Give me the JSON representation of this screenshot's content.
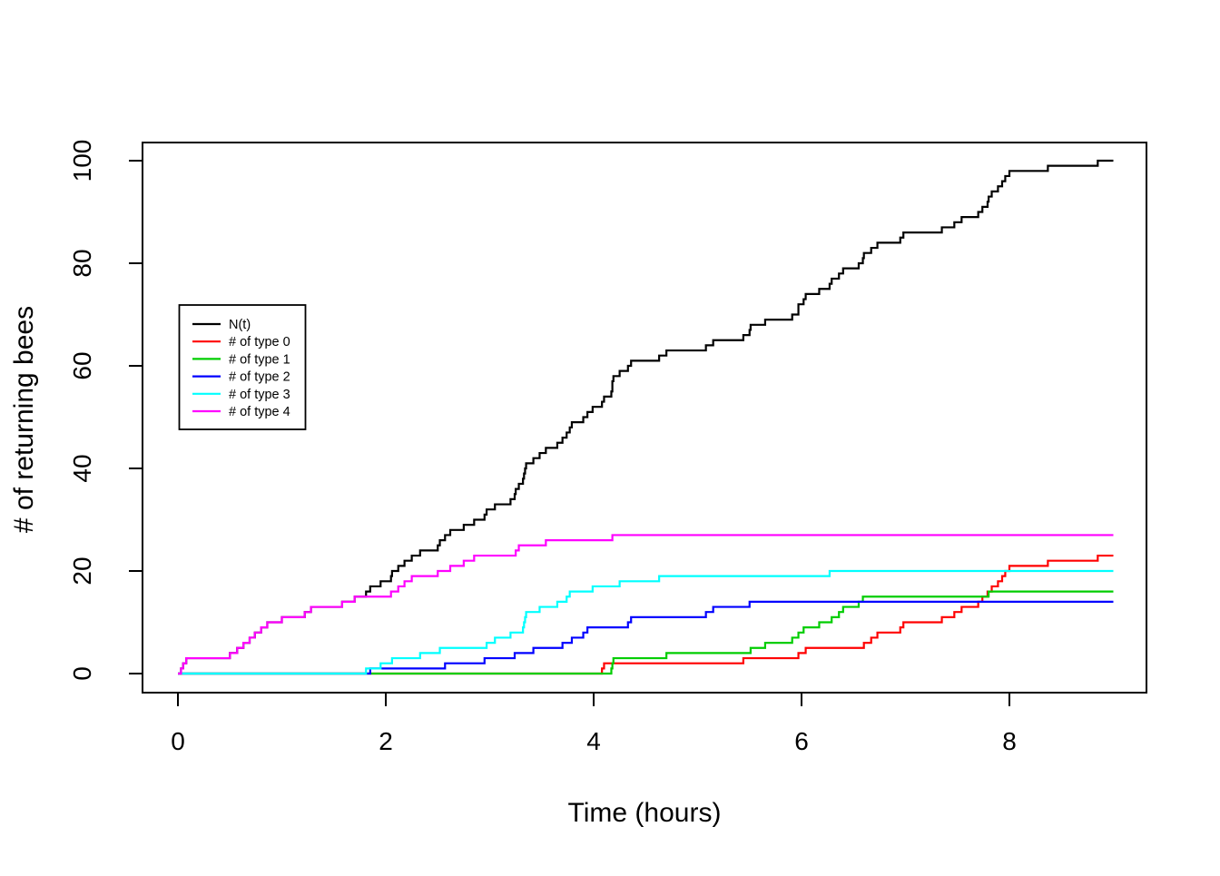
{
  "chart_data": {
    "type": "line",
    "subtype": "step",
    "title": "",
    "xlabel": "Time (hours)",
    "ylabel": "# of returning bees",
    "xlim": [
      -0.36,
      9.41
    ],
    "ylim": [
      -4,
      104
    ],
    "x_ticks": [
      0,
      2,
      4,
      6,
      8
    ],
    "y_ticks": [
      0,
      20,
      40,
      60,
      80,
      100
    ],
    "grid": false,
    "legend_position": "left-middle",
    "t_start": 0,
    "t_end": 9.0,
    "start_value": 0,
    "series": [
      {
        "name": "N(t)",
        "color": "#000000",
        "end_value": 100,
        "jump_times": [
          0.03,
          0.05,
          0.08,
          0.5,
          0.57,
          0.63,
          0.69,
          0.74,
          0.8,
          0.86,
          1.0,
          1.22,
          1.28,
          1.58,
          1.7,
          1.81,
          1.85,
          1.95,
          2.05,
          2.06,
          2.12,
          2.18,
          2.25,
          2.33,
          2.5,
          2.52,
          2.57,
          2.62,
          2.75,
          2.85,
          2.95,
          2.97,
          3.05,
          3.2,
          3.24,
          3.25,
          3.28,
          3.32,
          3.33,
          3.34,
          3.35,
          3.42,
          3.48,
          3.54,
          3.65,
          3.7,
          3.74,
          3.77,
          3.79,
          3.9,
          3.94,
          3.99,
          4.08,
          4.1,
          4.17,
          4.18,
          4.18,
          4.19,
          4.25,
          4.33,
          4.36,
          4.63,
          4.7,
          5.08,
          5.15,
          5.44,
          5.5,
          5.51,
          5.65,
          5.91,
          5.97,
          5.97,
          6.02,
          6.04,
          6.17,
          6.27,
          6.29,
          6.36,
          6.4,
          6.55,
          6.59,
          6.6,
          6.67,
          6.73,
          6.95,
          6.98,
          7.35,
          7.47,
          7.54,
          7.7,
          7.74,
          7.79,
          7.8,
          7.83,
          7.89,
          7.93,
          7.96,
          8.0,
          8.37,
          8.85
        ]
      },
      {
        "name": "# of type 0",
        "color": "#FF0000",
        "end_value": 23,
        "jump_times": [
          4.08,
          4.1,
          5.44,
          5.97,
          6.04,
          6.6,
          6.67,
          6.73,
          6.95,
          6.98,
          7.35,
          7.47,
          7.54,
          7.7,
          7.74,
          7.79,
          7.83,
          7.89,
          7.93,
          7.96,
          8.0,
          8.37,
          8.85
        ]
      },
      {
        "name": "# of type 1",
        "color": "#00CD00",
        "end_value": 16,
        "jump_times": [
          4.17,
          4.18,
          4.19,
          4.7,
          5.51,
          5.65,
          5.91,
          5.97,
          6.02,
          6.17,
          6.29,
          6.36,
          6.4,
          6.55,
          6.59,
          7.8
        ]
      },
      {
        "name": "# of type 2",
        "color": "#0000FF",
        "end_value": 14,
        "jump_times": [
          1.85,
          2.57,
          2.95,
          3.24,
          3.42,
          3.7,
          3.79,
          3.9,
          3.94,
          4.33,
          4.36,
          5.08,
          5.15,
          5.5
        ]
      },
      {
        "name": "# of type 3",
        "color": "#00FFFF",
        "end_value": 20,
        "jump_times": [
          1.81,
          1.95,
          2.06,
          2.33,
          2.52,
          2.97,
          3.05,
          3.2,
          3.32,
          3.33,
          3.34,
          3.35,
          3.48,
          3.65,
          3.74,
          3.77,
          3.99,
          4.25,
          4.63,
          6.27
        ]
      },
      {
        "name": "# of type 4",
        "color": "#FF00FF",
        "end_value": 27,
        "jump_times": [
          0.03,
          0.05,
          0.08,
          0.5,
          0.57,
          0.63,
          0.69,
          0.74,
          0.8,
          0.86,
          1.0,
          1.22,
          1.28,
          1.58,
          1.7,
          2.05,
          2.12,
          2.18,
          2.25,
          2.5,
          2.62,
          2.75,
          2.85,
          3.25,
          3.28,
          3.54,
          4.18
        ]
      }
    ]
  }
}
